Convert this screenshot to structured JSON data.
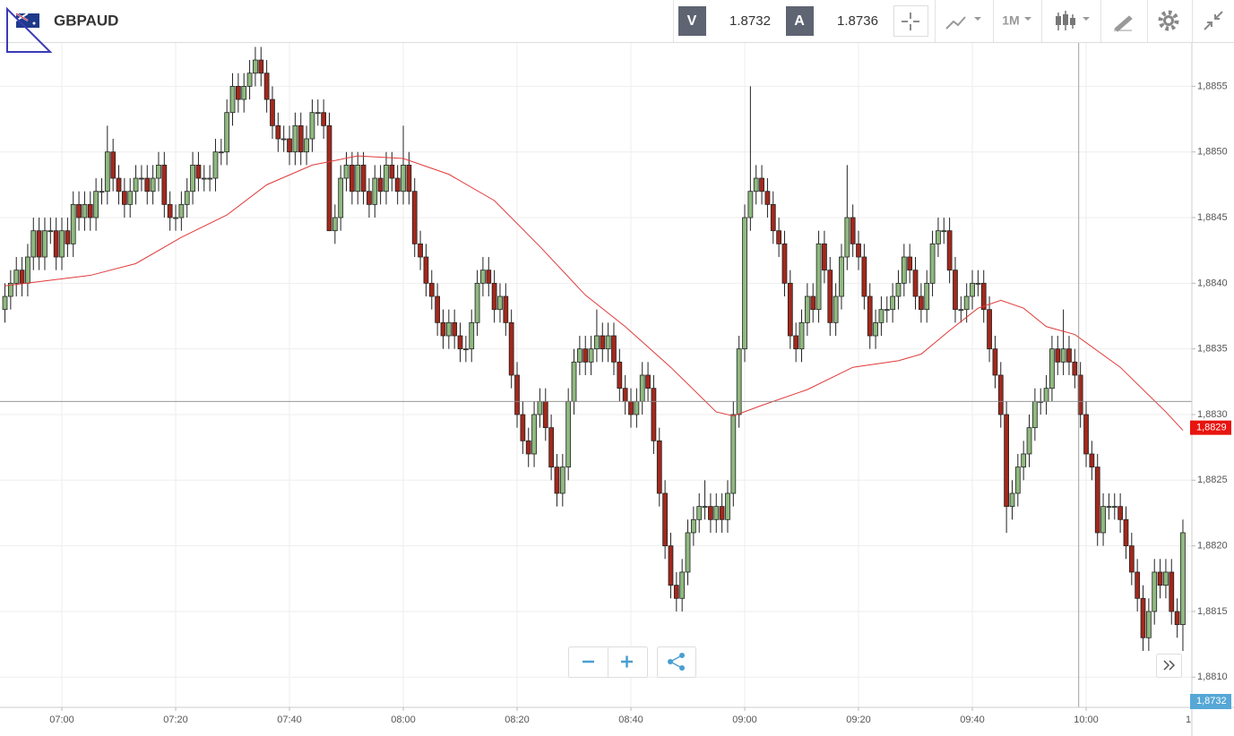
{
  "header": {
    "symbol": "GBPAUD",
    "bid_label": "V",
    "bid": 1.8732,
    "ask_label": "A",
    "ask": 1.8736,
    "timeframe": "1M"
  },
  "chart_data": {
    "type": "candlestick",
    "open": [
      1.8838,
      1.8839,
      1.884,
      1.8841,
      1.884,
      1.8842,
      1.8844,
      1.8842,
      1.8844,
      1.8844,
      1.8842,
      1.8844,
      1.8843,
      1.8846,
      1.8845,
      1.8846,
      1.8845,
      1.8847,
      1.8847,
      1.885,
      1.8848,
      1.8847,
      1.8846,
      1.8847,
      1.8848,
      1.8848,
      1.8847,
      1.8848,
      1.8849,
      1.8846,
      1.8845,
      1.8845,
      1.8846,
      1.8847,
      1.8849,
      1.8848,
      1.8848,
      1.8848,
      1.885,
      1.885,
      1.8853,
      1.8855,
      1.8854,
      1.8855,
      1.8856,
      1.8857,
      1.8856,
      1.8854,
      1.8852,
      1.8851,
      1.8851,
      1.885,
      1.8852,
      1.885,
      1.8851,
      1.8853,
      1.8853,
      1.8852,
      1.8844,
      1.8845,
      1.8848,
      1.8849,
      1.8847,
      1.8849,
      1.8847,
      1.8846,
      1.8848,
      1.8847,
      1.8849,
      1.8848,
      1.8847,
      1.8849,
      1.8847,
      1.8843,
      1.8842,
      1.884,
      1.8839,
      1.8837,
      1.8836,
      1.8837,
      1.8836,
      1.8835,
      1.8835,
      1.8837,
      1.884,
      1.8841,
      1.884,
      1.8838,
      1.8839,
      1.8837,
      1.8833,
      1.883,
      1.8828,
      1.8827,
      1.883,
      1.8831,
      1.8829,
      1.8826,
      1.8824,
      1.8826,
      1.8831,
      1.8834,
      1.8835,
      1.8834,
      1.8835,
      1.8836,
      1.8835,
      1.8836,
      1.8834,
      1.8832,
      1.8831,
      1.883,
      1.8831,
      1.8833,
      1.8832,
      1.8828,
      1.8824,
      1.882,
      1.8817,
      1.8816,
      1.8818,
      1.8821,
      1.8822,
      1.8823,
      1.8823,
      1.8822,
      1.8823,
      1.8822,
      1.8824,
      1.883,
      1.8835,
      1.8845,
      1.8847,
      1.8848,
      1.8847,
      1.8846,
      1.8844,
      1.8843,
      1.884,
      1.8836,
      1.8835,
      1.8837,
      1.8839,
      1.8838,
      1.8843,
      1.8841,
      1.8837,
      1.8839,
      1.8842,
      1.8845,
      1.8843,
      1.8842,
      1.8839,
      1.8836,
      1.8837,
      1.8838,
      1.8838,
      1.8839,
      1.884,
      1.8842,
      1.8841,
      1.8839,
      1.8838,
      1.884,
      1.8843,
      1.8844,
      1.8844,
      1.8841,
      1.8838,
      1.8838,
      1.8839,
      1.884,
      1.884,
      1.8838,
      1.8835,
      1.8833,
      1.883,
      1.8823,
      1.8824,
      1.8826,
      1.8827,
      1.8829,
      1.8831,
      1.8831,
      1.8832,
      1.8835,
      1.8834,
      1.8835,
      1.8834,
      1.8833,
      1.883,
      1.8827,
      1.8826,
      1.8821,
      1.8823,
      1.8823,
      1.8823,
      1.8822,
      1.882,
      1.8818,
      1.8816,
      1.8813,
      1.8815,
      1.8818,
      1.8817,
      1.8818,
      1.8815,
      1.8814
    ],
    "high": [
      1.884,
      1.8841,
      1.8842,
      1.8842,
      1.8843,
      1.8845,
      1.8845,
      1.8845,
      1.8845,
      1.8845,
      1.8845,
      1.8845,
      1.8847,
      1.8847,
      1.8847,
      1.8847,
      1.8848,
      1.8848,
      1.8852,
      1.8851,
      1.8849,
      1.8848,
      1.8848,
      1.8849,
      1.8849,
      1.8849,
      1.8849,
      1.885,
      1.885,
      1.8847,
      1.8846,
      1.8847,
      1.8848,
      1.885,
      1.885,
      1.8849,
      1.8849,
      1.8851,
      1.8851,
      1.8854,
      1.8856,
      1.8856,
      1.8856,
      1.8857,
      1.8858,
      1.8858,
      1.8857,
      1.8855,
      1.8853,
      1.8852,
      1.8852,
      1.8853,
      1.8853,
      1.8852,
      1.8854,
      1.8854,
      1.8854,
      1.8853,
      1.8846,
      1.8849,
      1.885,
      1.885,
      1.885,
      1.885,
      1.8848,
      1.8849,
      1.8849,
      1.885,
      1.885,
      1.8849,
      1.8852,
      1.885,
      1.8848,
      1.8844,
      1.8843,
      1.8841,
      1.884,
      1.8838,
      1.8838,
      1.8838,
      1.8837,
      1.8836,
      1.8838,
      1.8841,
      1.8842,
      1.8842,
      1.8841,
      1.884,
      1.884,
      1.8838,
      1.8834,
      1.8831,
      1.8829,
      1.8831,
      1.8832,
      1.8832,
      1.883,
      1.8827,
      1.8827,
      1.8832,
      1.8835,
      1.8836,
      1.8836,
      1.8836,
      1.8838,
      1.8837,
      1.8837,
      1.8837,
      1.8835,
      1.8833,
      1.8832,
      1.8832,
      1.8834,
      1.8834,
      1.8833,
      1.8829,
      1.8825,
      1.8821,
      1.8818,
      1.8819,
      1.8822,
      1.8823,
      1.8824,
      1.8825,
      1.8824,
      1.8824,
      1.8824,
      1.8825,
      1.8831,
      1.8836,
      1.8846,
      1.8855,
      1.8849,
      1.8849,
      1.8848,
      1.8847,
      1.8845,
      1.8844,
      1.8841,
      1.8837,
      1.8838,
      1.884,
      1.884,
      1.8844,
      1.8844,
      1.8842,
      1.884,
      1.8843,
      1.8849,
      1.8846,
      1.8844,
      1.8843,
      1.884,
      1.8838,
      1.8839,
      1.8839,
      1.884,
      1.8841,
      1.8843,
      1.8843,
      1.8842,
      1.884,
      1.8841,
      1.8844,
      1.8845,
      1.8845,
      1.8845,
      1.8842,
      1.8839,
      1.884,
      1.8841,
      1.8841,
      1.8841,
      1.8839,
      1.8836,
      1.8834,
      1.8831,
      1.8825,
      1.8827,
      1.8828,
      1.883,
      1.8832,
      1.8832,
      1.8833,
      1.8836,
      1.8836,
      1.8838,
      1.8836,
      1.8835,
      1.8834,
      1.8831,
      1.8828,
      1.8827,
      1.8824,
      1.8824,
      1.8824,
      1.8824,
      1.8823,
      1.8821,
      1.8819,
      1.8817,
      1.8816,
      1.8819,
      1.8819,
      1.8819,
      1.8819,
      1.8816,
      1.8822
    ],
    "low": [
      1.8837,
      1.8838,
      1.8839,
      1.8839,
      1.8839,
      1.8841,
      1.8841,
      1.8841,
      1.8843,
      1.8841,
      1.8841,
      1.8842,
      1.8842,
      1.8844,
      1.8844,
      1.8844,
      1.8844,
      1.8846,
      1.8846,
      1.8847,
      1.8846,
      1.8845,
      1.8845,
      1.8846,
      1.8847,
      1.8846,
      1.8846,
      1.8847,
      1.8845,
      1.8844,
      1.8844,
      1.8844,
      1.8845,
      1.8846,
      1.8847,
      1.8847,
      1.8847,
      1.8847,
      1.8849,
      1.8849,
      1.8852,
      1.8853,
      1.8853,
      1.8854,
      1.8855,
      1.8855,
      1.8853,
      1.8851,
      1.885,
      1.885,
      1.8849,
      1.8849,
      1.8849,
      1.8849,
      1.885,
      1.8852,
      1.8851,
      1.8844,
      1.8843,
      1.8844,
      1.8847,
      1.8846,
      1.8846,
      1.8846,
      1.8845,
      1.8845,
      1.8846,
      1.8846,
      1.8847,
      1.8846,
      1.8846,
      1.8846,
      1.8842,
      1.8841,
      1.8839,
      1.8838,
      1.8836,
      1.8835,
      1.8835,
      1.8835,
      1.8834,
      1.8834,
      1.8834,
      1.8836,
      1.8839,
      1.8839,
      1.8837,
      1.8837,
      1.8836,
      1.8832,
      1.8829,
      1.8827,
      1.8826,
      1.8826,
      1.8829,
      1.8828,
      1.8825,
      1.8823,
      1.8823,
      1.8825,
      1.883,
      1.8833,
      1.8833,
      1.8833,
      1.8834,
      1.8834,
      1.8834,
      1.8833,
      1.8831,
      1.883,
      1.8829,
      1.8829,
      1.883,
      1.8831,
      1.8827,
      1.8823,
      1.8819,
      1.8816,
      1.8815,
      1.8815,
      1.8817,
      1.882,
      1.8821,
      1.8822,
      1.8821,
      1.8821,
      1.8821,
      1.8821,
      1.8823,
      1.8829,
      1.8834,
      1.8844,
      1.8846,
      1.8846,
      1.8845,
      1.8843,
      1.8842,
      1.8839,
      1.8835,
      1.8834,
      1.8834,
      1.8836,
      1.8837,
      1.8837,
      1.884,
      1.8836,
      1.8836,
      1.8838,
      1.8841,
      1.8842,
      1.8841,
      1.8838,
      1.8835,
      1.8835,
      1.8836,
      1.8837,
      1.8837,
      1.8838,
      1.8839,
      1.884,
      1.8838,
      1.8837,
      1.8837,
      1.8839,
      1.8842,
      1.8843,
      1.884,
      1.8837,
      1.8837,
      1.8837,
      1.8838,
      1.8839,
      1.8837,
      1.8834,
      1.8832,
      1.8829,
      1.8821,
      1.8822,
      1.8823,
      1.8825,
      1.8826,
      1.8828,
      1.883,
      1.883,
      1.8831,
      1.8833,
      1.8833,
      1.8833,
      1.8832,
      1.8829,
      1.8826,
      1.8825,
      1.882,
      1.882,
      1.8822,
      1.8822,
      1.8821,
      1.8819,
      1.8817,
      1.8815,
      1.8812,
      1.8812,
      1.8814,
      1.8816,
      1.8816,
      1.8814,
      1.8813,
      1.8812
    ],
    "close": [
      1.8839,
      1.884,
      1.8841,
      1.884,
      1.8842,
      1.8844,
      1.8842,
      1.8844,
      1.8844,
      1.8842,
      1.8844,
      1.8843,
      1.8846,
      1.8845,
      1.8846,
      1.8845,
      1.8847,
      1.8847,
      1.885,
      1.8848,
      1.8847,
      1.8846,
      1.8847,
      1.8848,
      1.8848,
      1.8847,
      1.8848,
      1.8849,
      1.8846,
      1.8845,
      1.8845,
      1.8846,
      1.8847,
      1.8849,
      1.8848,
      1.8848,
      1.8848,
      1.885,
      1.885,
      1.8853,
      1.8855,
      1.8854,
      1.8855,
      1.8856,
      1.8857,
      1.8856,
      1.8854,
      1.8852,
      1.8851,
      1.8851,
      1.885,
      1.8852,
      1.885,
      1.8851,
      1.8853,
      1.8853,
      1.8852,
      1.8844,
      1.8845,
      1.8848,
      1.8849,
      1.8847,
      1.8849,
      1.8847,
      1.8846,
      1.8848,
      1.8847,
      1.8849,
      1.8848,
      1.8847,
      1.8849,
      1.8847,
      1.8843,
      1.8842,
      1.884,
      1.8839,
      1.8837,
      1.8836,
      1.8837,
      1.8836,
      1.8835,
      1.8835,
      1.8837,
      1.884,
      1.8841,
      1.884,
      1.8838,
      1.8839,
      1.8837,
      1.8833,
      1.883,
      1.8828,
      1.8827,
      1.883,
      1.8831,
      1.8829,
      1.8826,
      1.8824,
      1.8826,
      1.8831,
      1.8834,
      1.8835,
      1.8834,
      1.8835,
      1.8836,
      1.8835,
      1.8836,
      1.8834,
      1.8832,
      1.8831,
      1.883,
      1.8831,
      1.8833,
      1.8832,
      1.8828,
      1.8824,
      1.882,
      1.8817,
      1.8816,
      1.8818,
      1.8821,
      1.8822,
      1.8823,
      1.8823,
      1.8822,
      1.8823,
      1.8822,
      1.8824,
      1.883,
      1.8835,
      1.8845,
      1.8847,
      1.8848,
      1.8847,
      1.8846,
      1.8844,
      1.8843,
      1.884,
      1.8836,
      1.8835,
      1.8837,
      1.8839,
      1.8838,
      1.8843,
      1.8841,
      1.8837,
      1.8839,
      1.8842,
      1.8845,
      1.8843,
      1.8842,
      1.8839,
      1.8836,
      1.8837,
      1.8838,
      1.8838,
      1.8839,
      1.884,
      1.8842,
      1.8841,
      1.8839,
      1.8838,
      1.884,
      1.8843,
      1.8844,
      1.8844,
      1.8841,
      1.8838,
      1.8838,
      1.8839,
      1.884,
      1.884,
      1.8838,
      1.8835,
      1.8833,
      1.883,
      1.8823,
      1.8824,
      1.8826,
      1.8827,
      1.8829,
      1.8831,
      1.8831,
      1.8832,
      1.8835,
      1.8834,
      1.8835,
      1.8834,
      1.8833,
      1.883,
      1.8827,
      1.8826,
      1.8821,
      1.8823,
      1.8823,
      1.8823,
      1.8822,
      1.882,
      1.8818,
      1.8816,
      1.8813,
      1.8815,
      1.8818,
      1.8817,
      1.8818,
      1.8815,
      1.8814,
      1.8821
    ],
    "up_color": "#8fb97f",
    "down_color": "#a3281c",
    "xlim": [
      -0.87,
      208.58
    ],
    "xticks": [
      {
        "value": 10,
        "label": "07:00"
      },
      {
        "value": 30,
        "label": "07:20"
      },
      {
        "value": 50,
        "label": "07:40"
      },
      {
        "value": 70,
        "label": "08:00"
      },
      {
        "value": 90,
        "label": "08:20"
      },
      {
        "value": 110,
        "label": "08:40"
      },
      {
        "value": 130,
        "label": "09:00"
      },
      {
        "value": 150,
        "label": "09:20"
      },
      {
        "value": 170,
        "label": "09:40"
      },
      {
        "value": 190,
        "label": "10:00"
      },
      {
        "value": 210,
        "label": "1"
      }
    ],
    "ylim": [
      1.88077,
      1.88583
    ],
    "yticks": [
      {
        "value": 1.881,
        "label": "1,8810"
      },
      {
        "value": 1.8815,
        "label": "1,8815"
      },
      {
        "value": 1.882,
        "label": "1,8820"
      },
      {
        "value": 1.8825,
        "label": "1,8825"
      },
      {
        "value": 1.883,
        "label": "1,8830"
      },
      {
        "value": 1.8835,
        "label": "1,8835"
      },
      {
        "value": 1.884,
        "label": "1,8840"
      },
      {
        "value": 1.8845,
        "label": "1,8845"
      },
      {
        "value": 1.885,
        "label": "1,8850"
      },
      {
        "value": 1.8855,
        "label": "1,8855"
      }
    ],
    "grid": true,
    "moving_average": {
      "color": "#e03a3a",
      "x": [
        0,
        15,
        23,
        31,
        39,
        46,
        54,
        62,
        70,
        78,
        86,
        94,
        102,
        109,
        117,
        125,
        128,
        133,
        141,
        149,
        157,
        161,
        166,
        171,
        175,
        179,
        183,
        188,
        196,
        204,
        207
      ],
      "values": [
        1.88398,
        1.88406,
        1.88415,
        1.88435,
        1.88452,
        1.88475,
        1.8849,
        1.88497,
        1.88495,
        1.88483,
        1.88463,
        1.88428,
        1.88391,
        1.88367,
        1.88336,
        1.88302,
        1.88299,
        1.88307,
        1.88319,
        1.88336,
        1.88341,
        1.88346,
        1.88364,
        1.88381,
        1.88387,
        1.88381,
        1.88367,
        1.88361,
        1.88336,
        1.88302,
        1.88288
      ],
      "tag": {
        "value": 1.8829,
        "label": "1,8829"
      }
    },
    "crosshair": {
      "x": 188.7,
      "y": 1.8831
    },
    "price_tag": {
      "value": 1.8732,
      "label": "1,8732"
    }
  }
}
